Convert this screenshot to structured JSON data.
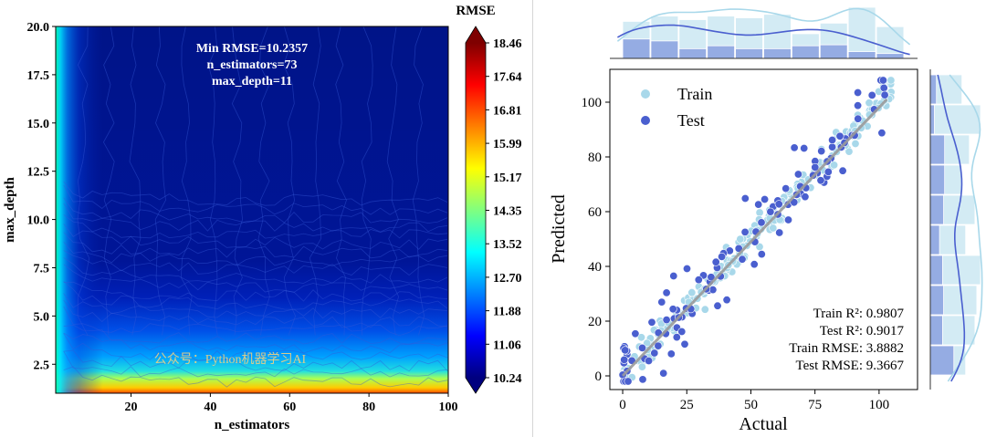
{
  "chart_data": [
    {
      "type": "heatmap",
      "subtype": "filled-contour",
      "xlabel": "n_estimators",
      "ylabel": "max_depth",
      "xlim": [
        1,
        100
      ],
      "ylim": [
        1,
        20
      ],
      "xticks": [
        20,
        40,
        60,
        80,
        100
      ],
      "yticks": [
        2.5,
        5.0,
        7.5,
        10.0,
        12.5,
        15.0,
        17.5,
        20.0
      ],
      "colorbar": {
        "title": "RMSE",
        "colormap": "jet",
        "range": [
          10.24,
          18.46
        ],
        "ticks": [
          "18.46",
          "17.64",
          "16.81",
          "15.99",
          "15.17",
          "14.35",
          "13.52",
          "12.70",
          "11.88",
          "11.06",
          "10.24"
        ],
        "extend": "both"
      },
      "annotation": [
        "Min RMSE=10.2357",
        "n_estimators=73",
        "max_depth=11"
      ],
      "watermark": "公众号：Python机器学习AI"
    },
    {
      "type": "scatter",
      "xlabel": "Actual",
      "ylabel": "Predicted",
      "xlim": [
        -5,
        115
      ],
      "ylim": [
        -5,
        112
      ],
      "xticks": [
        0,
        25,
        50,
        75,
        100
      ],
      "yticks": [
        0,
        20,
        40,
        60,
        80,
        100
      ],
      "legend": {
        "position": "top-left",
        "entries": [
          "Train",
          "Test"
        ]
      },
      "series": [
        {
          "name": "Train",
          "color": "#a8d8ea",
          "n_points": 220
        },
        {
          "name": "Test",
          "color": "#4a5fcf",
          "n_points": 120
        }
      ],
      "reference_line": {
        "x": [
          0,
          103
        ],
        "y": [
          0,
          101
        ],
        "color": "#9a9a9a"
      },
      "metrics": [
        "Train R²: 0.9807",
        "Test R²: 0.9017",
        "Train RMSE: 3.8882",
        "Test RMSE: 9.3667"
      ],
      "marginals": {
        "top": "histogram+kde of Actual",
        "right": "histogram+kde of Predicted"
      }
    }
  ]
}
